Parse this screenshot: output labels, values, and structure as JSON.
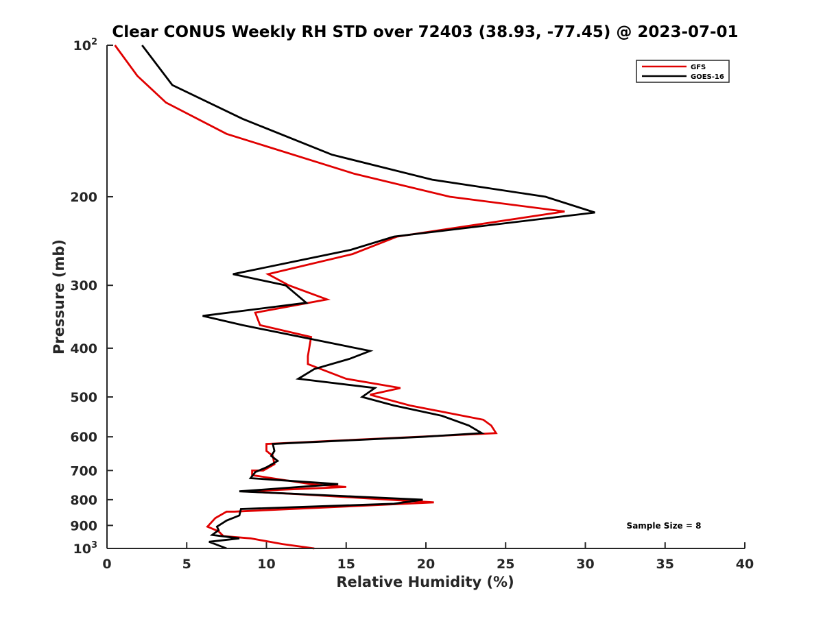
{
  "chart_data": {
    "type": "line",
    "title": "Clear CONUS Weekly RH STD over 72403 (38.93, -77.45) @ 2023-07-01",
    "xlabel": "Relative Humidity (%)",
    "ylabel": "Pressure (mb)",
    "xlim": [
      0,
      40
    ],
    "ylim": [
      100,
      1000
    ],
    "y_scale": "log",
    "y_reversed": true,
    "x_ticks": [
      "0",
      "5",
      "10",
      "15",
      "20",
      "25",
      "30",
      "35",
      "40"
    ],
    "y_ticks": [
      {
        "value": 100,
        "base": "10",
        "exp": "2"
      },
      {
        "value": 200,
        "base": "200",
        "exp": ""
      },
      {
        "value": 300,
        "base": "300",
        "exp": ""
      },
      {
        "value": 400,
        "base": "400",
        "exp": ""
      },
      {
        "value": 500,
        "base": "500",
        "exp": ""
      },
      {
        "value": 600,
        "base": "600",
        "exp": ""
      },
      {
        "value": 700,
        "base": "700",
        "exp": ""
      },
      {
        "value": 800,
        "base": "800",
        "exp": ""
      },
      {
        "value": 900,
        "base": "900",
        "exp": ""
      },
      {
        "value": 1000,
        "base": "10",
        "exp": "3"
      }
    ],
    "legend_position": "top-right",
    "grid": false,
    "annotation": "Sample Size = 8",
    "series": [
      {
        "name": "GFS",
        "color": "#e00000",
        "points": [
          [
            0.5,
            100
          ],
          [
            1.9,
            115
          ],
          [
            3.7,
            130
          ],
          [
            7.5,
            150
          ],
          [
            15.5,
            180
          ],
          [
            21.5,
            200
          ],
          [
            28.7,
            214
          ],
          [
            18.2,
            240
          ],
          [
            15.4,
            260
          ],
          [
            10.1,
            285
          ],
          [
            11.4,
            300
          ],
          [
            13.8,
            320
          ],
          [
            9.3,
            340
          ],
          [
            9.6,
            360
          ],
          [
            12.8,
            380
          ],
          [
            12.6,
            415
          ],
          [
            12.6,
            430
          ],
          [
            15.0,
            460
          ],
          [
            18.4,
            480
          ],
          [
            16.5,
            495
          ],
          [
            19.0,
            520
          ],
          [
            23.6,
            555
          ],
          [
            24.1,
            570
          ],
          [
            24.4,
            590
          ],
          [
            10.0,
            620
          ],
          [
            10.0,
            640
          ],
          [
            10.4,
            655
          ],
          [
            10.5,
            680
          ],
          [
            9.8,
            700
          ],
          [
            9.1,
            700
          ],
          [
            9.1,
            715
          ],
          [
            12.8,
            745
          ],
          [
            15.0,
            755
          ],
          [
            8.5,
            770
          ],
          [
            12.0,
            780
          ],
          [
            20.5,
            810
          ],
          [
            8.0,
            845
          ],
          [
            7.5,
            845
          ],
          [
            6.8,
            870
          ],
          [
            6.3,
            905
          ],
          [
            7.0,
            925
          ],
          [
            7.3,
            945
          ],
          [
            9.0,
            955
          ],
          [
            11.0,
            980
          ],
          [
            13.0,
            1000
          ]
        ]
      },
      {
        "name": "GOES-16",
        "color": "#000000",
        "points": [
          [
            2.2,
            100
          ],
          [
            4.1,
            120
          ],
          [
            8.5,
            140
          ],
          [
            14.1,
            165
          ],
          [
            20.4,
            185
          ],
          [
            27.5,
            200
          ],
          [
            30.6,
            215
          ],
          [
            18.0,
            240
          ],
          [
            15.3,
            255
          ],
          [
            7.9,
            285
          ],
          [
            11.2,
            300
          ],
          [
            12.5,
            325
          ],
          [
            6.0,
            345
          ],
          [
            8.5,
            360
          ],
          [
            16.5,
            405
          ],
          [
            15.2,
            420
          ],
          [
            13.0,
            440
          ],
          [
            12.0,
            460
          ],
          [
            16.8,
            480
          ],
          [
            16.0,
            500
          ],
          [
            18.0,
            520
          ],
          [
            21.0,
            545
          ],
          [
            22.7,
            570
          ],
          [
            23.5,
            590
          ],
          [
            19.8,
            600
          ],
          [
            10.4,
            620
          ],
          [
            10.5,
            640
          ],
          [
            10.3,
            655
          ],
          [
            10.7,
            670
          ],
          [
            10.0,
            690
          ],
          [
            9.3,
            705
          ],
          [
            9.0,
            725
          ],
          [
            14.5,
            745
          ],
          [
            8.3,
            770
          ],
          [
            19.8,
            800
          ],
          [
            18.0,
            815
          ],
          [
            8.4,
            835
          ],
          [
            8.3,
            860
          ],
          [
            7.5,
            880
          ],
          [
            6.9,
            905
          ],
          [
            7.0,
            920
          ],
          [
            6.6,
            940
          ],
          [
            8.3,
            955
          ],
          [
            6.4,
            970
          ],
          [
            7.5,
            1000
          ]
        ]
      }
    ]
  }
}
